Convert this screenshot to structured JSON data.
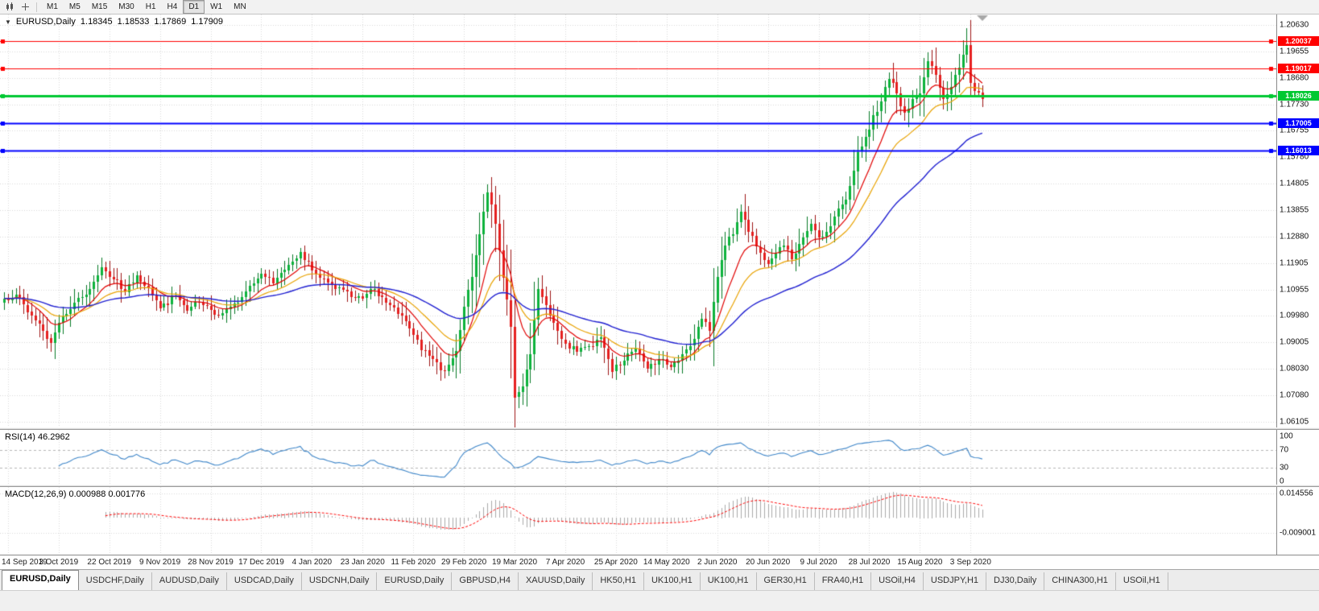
{
  "toolbar": {
    "timeframes": [
      "M1",
      "M5",
      "M15",
      "M30",
      "H1",
      "H4",
      "D1",
      "W1",
      "MN"
    ],
    "active_timeframe": "D1"
  },
  "main_pane": {
    "header_symbol": "EURUSD,Daily",
    "ohlc": {
      "open": "1.18345",
      "high": "1.18533",
      "low": "1.17869",
      "close": "1.17909"
    },
    "axis_labels": [
      "1.20630",
      "1.19655",
      "1.18680",
      "1.17730",
      "1.16755",
      "1.15780",
      "1.14805",
      "1.13855",
      "1.12880",
      "1.11905",
      "1.10955",
      "1.09980",
      "1.09005",
      "1.08030",
      "1.07080",
      "1.06105"
    ]
  },
  "levels": [
    {
      "value": 1.20037,
      "label": "1.20037",
      "color": "#ff0000",
      "width": 1
    },
    {
      "value": 1.19017,
      "label": "1.19017",
      "color": "#ff0000",
      "width": 1
    },
    {
      "value": 1.18026,
      "label": "1.18026",
      "color": "#00c832",
      "width": 3
    },
    {
      "value": 1.17005,
      "label": "1.17005",
      "color": "#0000ff",
      "width": 2
    },
    {
      "value": 1.16013,
      "label": "1.16013",
      "color": "#0000ff",
      "width": 2
    }
  ],
  "rsi_pane": {
    "label": "RSI(14) 46.2962",
    "axis_values": [
      100,
      70,
      30,
      0
    ],
    "axis_labels": [
      "100",
      "70",
      "30",
      "0"
    ],
    "upper_level": 70,
    "lower_level": 30
  },
  "macd_pane": {
    "label": "MACD(12,26,9) 0.000988 0.001776",
    "axis_values": [
      0.014556,
      -0.009001
    ],
    "axis_labels": [
      "0.014556",
      "-0.009001"
    ]
  },
  "date_labels": [
    "14 Sep 2019",
    "3 Oct 2019",
    "22 Oct 2019",
    "9 Nov 2019",
    "28 Nov 2019",
    "17 Dec 2019",
    "4 Jan 2020",
    "23 Jan 2020",
    "11 Feb 2020",
    "29 Feb 2020",
    "19 Mar 2020",
    "7 Apr 2020",
    "25 Apr 2020",
    "14 May 2020",
    "2 Jun 2020",
    "20 Jun 2020",
    "9 Jul 2020",
    "28 Jul 2020",
    "15 Aug 2020",
    "3 Sep 2020"
  ],
  "tabs": {
    "active_index": 0,
    "items": [
      "EURUSD,Daily",
      "USDCHF,Daily",
      "AUDUSD,Daily",
      "USDCAD,Daily",
      "USDCNH,Daily",
      "EURUSD,Daily",
      "GBPUSD,H4",
      "XAUUSD,Daily",
      "HK50,H1",
      "UK100,H1",
      "UK100,H1",
      "GER30,H1",
      "FRA40,H1",
      "USOil,H4",
      "USDJPY,H1",
      "DJ30,Daily",
      "CHINA300,H1",
      "USOil,H1"
    ]
  },
  "colors": {
    "up_candle": "#0db33c",
    "up_wick": "#067a26",
    "down_candle": "#e62020",
    "down_wick": "#9d1313",
    "ma_fast": "#e00000",
    "ma_mid": "#e8a200",
    "ma_slow": "#1f1fd0",
    "rsi_line": "#3d85c8",
    "macd_hist": "#aaaaaa",
    "macd_signal": "#ff0000",
    "grid": "#d8d8d8",
    "level_dash": "#b4b4b4"
  },
  "chart_data": {
    "type": "candlestick",
    "symbol": "EURUSD",
    "timeframe": "Daily",
    "n_bars": 252,
    "scale_top_value": 1.2063,
    "scale_step": 0.00975,
    "last_ohlc": [
      1.18345,
      1.18533,
      1.17869,
      1.17909
    ],
    "levels": [
      1.20037,
      1.19017,
      1.18026,
      1.17005,
      1.16013
    ],
    "ma_periods": [
      10,
      20,
      50
    ],
    "rsi_period": 14,
    "rsi_current": 46.2962,
    "macd_params": [
      12,
      26,
      9
    ],
    "macd_current": [
      0.000988,
      0.001776
    ],
    "noise_seed": 7,
    "close_anchors": [
      [
        0,
        1.1055
      ],
      [
        3,
        1.107
      ],
      [
        6,
        1.1005
      ],
      [
        9,
        1.096
      ],
      [
        12,
        1.089
      ],
      [
        14,
        1.0965
      ],
      [
        18,
        1.104
      ],
      [
        21,
        1.107
      ],
      [
        25,
        1.117
      ],
      [
        28,
        1.1125
      ],
      [
        31,
        1.108
      ],
      [
        34,
        1.114
      ],
      [
        37,
        1.1095
      ],
      [
        40,
        1.102
      ],
      [
        44,
        1.1065
      ],
      [
        47,
        1.101
      ],
      [
        50,
        1.104
      ],
      [
        54,
        1.0995
      ],
      [
        58,
        1.1025
      ],
      [
        62,
        1.108
      ],
      [
        66,
        1.1145
      ],
      [
        69,
        1.111
      ],
      [
        73,
        1.118
      ],
      [
        76,
        1.1225
      ],
      [
        79,
        1.116
      ],
      [
        83,
        1.1115
      ],
      [
        86,
        1.1095
      ],
      [
        89,
        1.106
      ],
      [
        92,
        1.1055
      ],
      [
        95,
        1.109
      ],
      [
        98,
        1.104
      ],
      [
        101,
        1.1
      ],
      [
        104,
        1.0945
      ],
      [
        107,
        1.0865
      ],
      [
        110,
        1.083
      ],
      [
        112,
        1.079
      ],
      [
        114,
        1.081
      ],
      [
        116,
        1.086
      ],
      [
        118,
        1.1025
      ],
      [
        120,
        1.1135
      ],
      [
        122,
        1.129
      ],
      [
        124,
        1.1445
      ],
      [
        126,
        1.133
      ],
      [
        128,
        1.113
      ],
      [
        130,
        1.095
      ],
      [
        131,
        1.069
      ],
      [
        133,
        1.073
      ],
      [
        135,
        1.085
      ],
      [
        137,
        1.109
      ],
      [
        139,
        1.103
      ],
      [
        141,
        1.0965
      ],
      [
        144,
        1.089
      ],
      [
        147,
        1.086
      ],
      [
        150,
        1.088
      ],
      [
        153,
        1.091
      ],
      [
        156,
        1.0785
      ],
      [
        159,
        1.0825
      ],
      [
        162,
        1.087
      ],
      [
        165,
        1.0795
      ],
      [
        168,
        1.083
      ],
      [
        171,
        1.08
      ],
      [
        174,
        1.085
      ],
      [
        177,
        1.0905
      ],
      [
        179,
        1.098
      ],
      [
        181,
        1.0935
      ],
      [
        183,
        1.1135
      ],
      [
        185,
        1.125
      ],
      [
        187,
        1.129
      ],
      [
        189,
        1.1375
      ],
      [
        191,
        1.13
      ],
      [
        193,
        1.1245
      ],
      [
        196,
        1.118
      ],
      [
        198,
        1.122
      ],
      [
        200,
        1.125
      ],
      [
        202,
        1.12
      ],
      [
        205,
        1.128
      ],
      [
        207,
        1.133
      ],
      [
        209,
        1.128
      ],
      [
        211,
        1.13
      ],
      [
        214,
        1.1385
      ],
      [
        216,
        1.142
      ],
      [
        219,
        1.1595
      ],
      [
        221,
        1.165
      ],
      [
        223,
        1.173
      ],
      [
        225,
        1.178
      ],
      [
        227,
        1.1865
      ],
      [
        229,
        1.181
      ],
      [
        231,
        1.174
      ],
      [
        233,
        1.179
      ],
      [
        235,
        1.181
      ],
      [
        237,
        1.193
      ],
      [
        239,
        1.188
      ],
      [
        241,
        1.179
      ],
      [
        243,
        1.1835
      ],
      [
        245,
        1.1905
      ],
      [
        247,
        1.199
      ],
      [
        248,
        1.185
      ],
      [
        249,
        1.182
      ],
      [
        250,
        1.1815
      ],
      [
        251,
        1.17909
      ]
    ]
  }
}
